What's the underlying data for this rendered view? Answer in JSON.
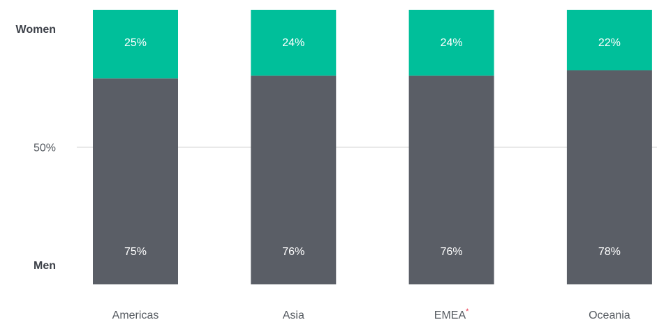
{
  "chart_data": {
    "type": "stacked_bar",
    "categories": [
      "Americas",
      "Asia",
      "EMEA*",
      "Oceania"
    ],
    "series": [
      {
        "name": "Men",
        "color": "#5a5e66",
        "values": [
          75,
          76,
          76,
          78
        ],
        "value_labels": [
          "75%",
          "76%",
          "76%",
          "78%"
        ]
      },
      {
        "name": "Women",
        "color": "#00bf9a",
        "values": [
          25,
          24,
          24,
          22
        ],
        "value_labels": [
          "25%",
          "24%",
          "24%",
          "22%"
        ]
      }
    ],
    "ylim": [
      0,
      100
    ],
    "yticks": [
      {
        "value": 50,
        "label": "50%"
      }
    ],
    "grid": true
  }
}
